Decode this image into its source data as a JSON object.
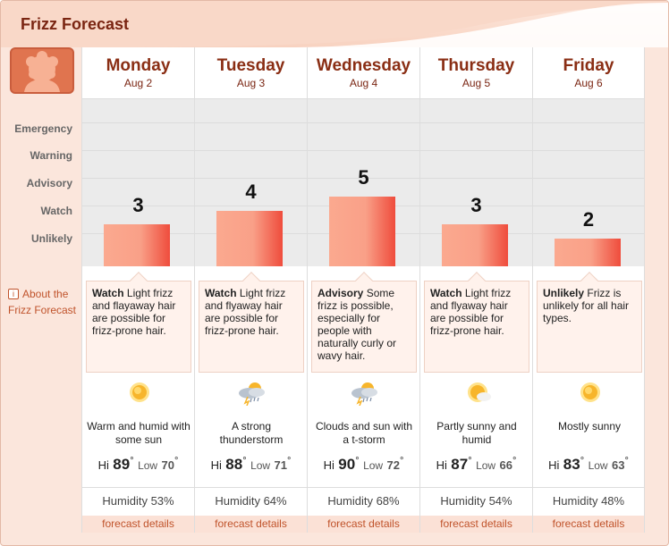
{
  "app": {
    "title": "Frizz Forecast"
  },
  "levels": [
    "Emergency",
    "Warning",
    "Advisory",
    "Watch",
    "Unlikely"
  ],
  "about": {
    "label": "About the Frizz Forecast",
    "icon": "info-icon"
  },
  "colors": {
    "accent": "#8a2e14",
    "bar_light": "#fba98f",
    "bar_dark": "#ef4c3c",
    "link": "#c0532b",
    "panel": "#fbe6dc"
  },
  "days": [
    {
      "name": "Monday",
      "date": "Aug 2",
      "index": 3,
      "index_label": "3",
      "level": "Watch",
      "desc": "Light frizz and flayaway hair are possible for frizz-prone hair.",
      "icon": "sun-icon",
      "condition": "Warm and humid with some sun",
      "hi_label": "Hi",
      "hi": "89",
      "lo_label": "Low",
      "lo": "70",
      "humidity": "Humidity 53%",
      "details": "forecast details"
    },
    {
      "name": "Tuesday",
      "date": "Aug 3",
      "index": 4,
      "index_label": "4",
      "level": "Watch",
      "desc": "Light frizz and flyaway hair are possible for frizz-prone hair.",
      "icon": "thunderstorm-icon",
      "condition": "A strong thunderstorm",
      "hi_label": "Hi",
      "hi": "88",
      "lo_label": "Low",
      "lo": "71",
      "humidity": "Humidity 64%",
      "details": "forecast details"
    },
    {
      "name": "Wednesday",
      "date": "Aug 4",
      "index": 5,
      "index_label": "5",
      "level": "Advisory",
      "desc": "Some frizz is possible, especially for people with naturally curly or wavy hair.",
      "icon": "thunderstorm-icon",
      "condition": "Clouds and sun with a t-storm",
      "hi_label": "Hi",
      "hi": "90",
      "lo_label": "Low",
      "lo": "72",
      "humidity": "Humidity 68%",
      "details": "forecast details"
    },
    {
      "name": "Thursday",
      "date": "Aug 5",
      "index": 3,
      "index_label": "3",
      "level": "Watch",
      "desc": "Light frizz and flyaway hair are possible for frizz-prone hair.",
      "icon": "partly-sunny-icon",
      "condition": "Partly sunny and humid",
      "hi_label": "Hi",
      "hi": "87",
      "lo_label": "Low",
      "lo": "66",
      "humidity": "Humidity 54%",
      "details": "forecast details"
    },
    {
      "name": "Friday",
      "date": "Aug 6",
      "index": 2,
      "index_label": "2",
      "level": "Unlikely",
      "desc": "Frizz is unlikely for all hair types.",
      "icon": "sun-icon",
      "condition": "Mostly sunny",
      "hi_label": "Hi",
      "hi": "83",
      "lo_label": "Low",
      "lo": "63",
      "humidity": "Humidity 48%",
      "details": "forecast details"
    }
  ]
}
